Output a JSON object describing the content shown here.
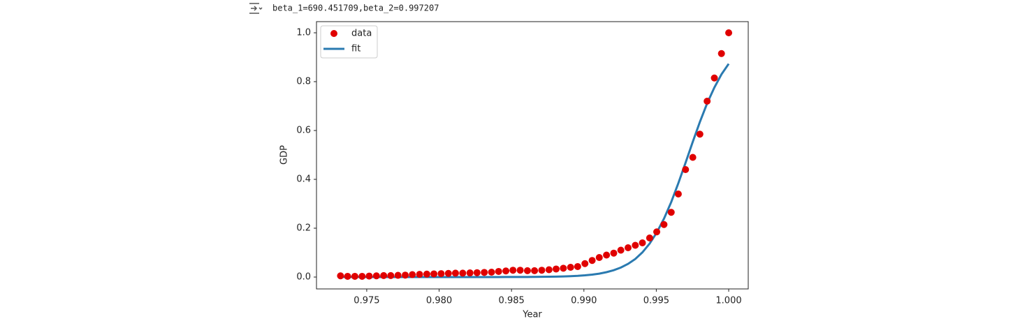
{
  "output_text": "beta_1=690.451709,beta_2=0.997207",
  "chart_data": {
    "type": "scatter",
    "x_label": "Year",
    "y_label": "GDP",
    "x": [
      0.97319,
      0.97368,
      0.97418,
      0.97468,
      0.97517,
      0.97567,
      0.97617,
      0.97666,
      0.97716,
      0.97766,
      0.97815,
      0.97865,
      0.97915,
      0.97964,
      0.98014,
      0.98064,
      0.98113,
      0.98163,
      0.98213,
      0.98262,
      0.98312,
      0.98362,
      0.98411,
      0.98461,
      0.9851,
      0.9856,
      0.9861,
      0.98659,
      0.98709,
      0.98759,
      0.98808,
      0.98858,
      0.98908,
      0.98957,
      0.99007,
      0.99057,
      0.99106,
      0.99156,
      0.99206,
      0.99255,
      0.99305,
      0.99355,
      0.99404,
      0.99454,
      0.99503,
      0.99553,
      0.99603,
      0.99652,
      0.99702,
      0.99752,
      0.99801,
      0.99851,
      0.99901,
      0.9995,
      1.0
    ],
    "series": [
      {
        "name": "data",
        "color": "#e00000",
        "mode": "markers",
        "values": [
          0.005,
          0.003,
          0.003,
          0.003,
          0.004,
          0.005,
          0.006,
          0.006,
          0.007,
          0.008,
          0.01,
          0.011,
          0.012,
          0.013,
          0.014,
          0.015,
          0.016,
          0.016,
          0.017,
          0.018,
          0.019,
          0.02,
          0.023,
          0.025,
          0.028,
          0.028,
          0.026,
          0.026,
          0.028,
          0.03,
          0.033,
          0.036,
          0.04,
          0.043,
          0.055,
          0.068,
          0.08,
          0.09,
          0.098,
          0.11,
          0.12,
          0.13,
          0.14,
          0.16,
          0.185,
          0.215,
          0.265,
          0.34,
          0.44,
          0.49,
          0.585,
          0.72,
          0.815,
          0.915,
          1.0
        ]
      },
      {
        "name": "fit",
        "color": "#2a7ab0",
        "mode": "line",
        "values": [
          0,
          0,
          0,
          0,
          0,
          0,
          0,
          0,
          0,
          0,
          0,
          0,
          0,
          0,
          0,
          0,
          0,
          0,
          0,
          0,
          0.0001,
          0.0001,
          0.0001,
          0.0002,
          0.0002,
          0.0003,
          0.0005,
          0.0007,
          0.0009,
          0.0013,
          0.0018,
          0.0025,
          0.0037,
          0.0051,
          0.0072,
          0.01,
          0.014,
          0.02,
          0.028,
          0.039,
          0.054,
          0.074,
          0.101,
          0.137,
          0.182,
          0.239,
          0.307,
          0.384,
          0.468,
          0.554,
          0.635,
          0.711,
          0.776,
          0.83,
          0.873
        ]
      }
    ],
    "xlim": [
      0.97153,
      1.00135
    ],
    "ylim": [
      -0.0486,
      1.0457
    ],
    "xticks": [
      0.975,
      {
        "value": 0.98,
        "label": "0.980"
      },
      0.985,
      {
        "value": 0.99,
        "label": "0.990"
      },
      0.995,
      {
        "value": 1.0,
        "label": "1.000"
      }
    ],
    "yticks": [
      {
        "value": 0,
        "label": "0.0"
      },
      0.2,
      0.4,
      0.6,
      0.8,
      {
        "value": 1.0,
        "label": "1.0"
      }
    ],
    "legend": "upper left"
  }
}
